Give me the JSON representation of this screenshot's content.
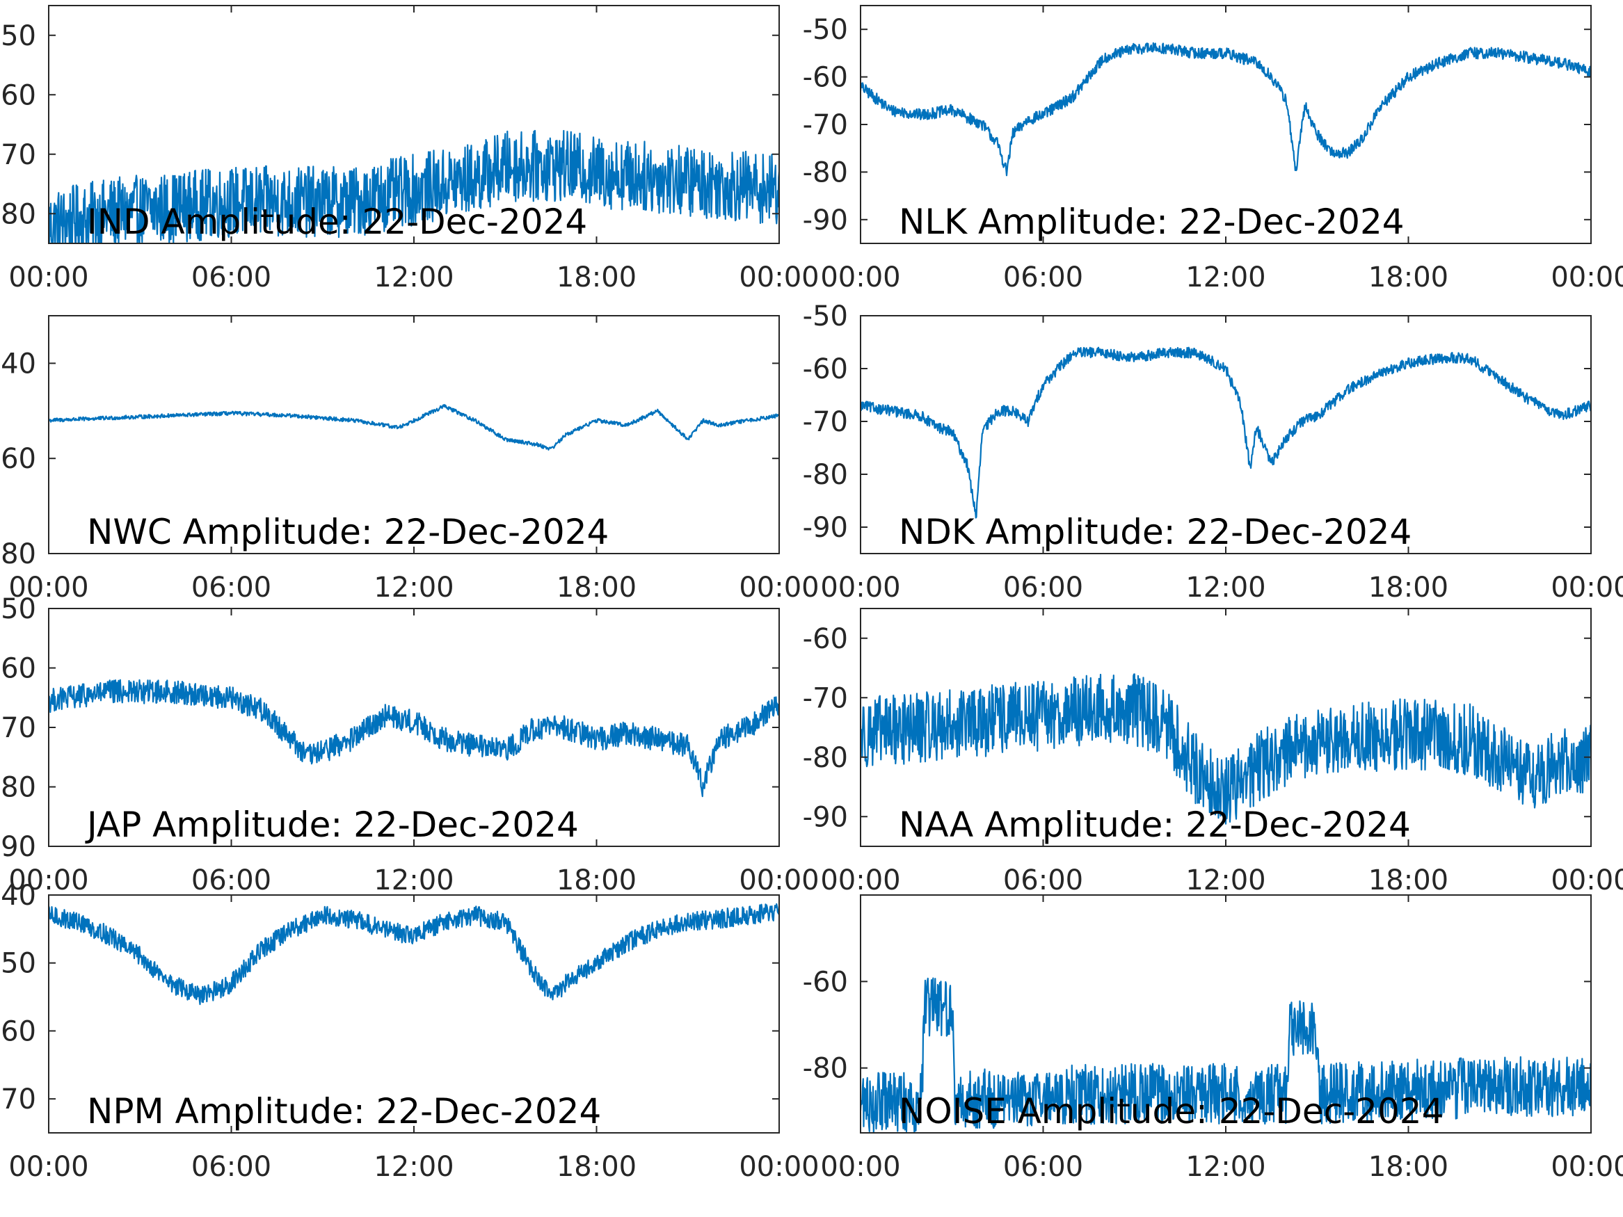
{
  "figure": {
    "line_color": "#0072BD",
    "axis_color": "#262626",
    "background": "#ffffff"
  },
  "chart_data": [
    {
      "type": "line",
      "title": "IND Amplitude: 22-Dec-2024",
      "x_ticks": [
        "00:00",
        "06:00",
        "12:00",
        "18:00",
        "00:00"
      ],
      "x_range_hours": [
        0,
        24
      ],
      "y_ticks": [
        -50,
        -60,
        -70,
        -80
      ],
      "y_tick_labels": [
        "50",
        "60",
        "70",
        "80"
      ],
      "ylim": [
        -85,
        -45
      ],
      "noise": 6,
      "series": [
        {
          "x": [
            0,
            2,
            4,
            6,
            8,
            10,
            12,
            14,
            15,
            16,
            17,
            18,
            20,
            22,
            24
          ],
          "y": [
            -82,
            -80,
            -79,
            -78,
            -78,
            -78,
            -76,
            -74,
            -72,
            -72,
            -72,
            -73,
            -74,
            -75,
            -76
          ]
        }
      ]
    },
    {
      "type": "line",
      "title": "NLK Amplitude: 22-Dec-2024",
      "x_ticks": [
        "00:00",
        "06:00",
        "12:00",
        "18:00",
        "00:00"
      ],
      "x_range_hours": [
        0,
        24
      ],
      "y_ticks": [
        -50,
        -60,
        -70,
        -80,
        -90
      ],
      "y_tick_labels": [
        "-50",
        "-60",
        "-70",
        "-80",
        "-90"
      ],
      "ylim": [
        -95,
        -45
      ],
      "noise": 1.2,
      "series": [
        {
          "x": [
            0,
            1,
            2,
            3,
            4,
            4.5,
            4.8,
            5,
            5.5,
            6,
            7,
            8,
            9,
            10,
            11,
            12,
            13,
            13.5,
            14,
            14.3,
            14.6,
            15,
            15.5,
            16,
            16.5,
            17,
            18,
            19,
            20,
            21,
            22,
            23,
            24
          ],
          "y": [
            -62,
            -67,
            -68,
            -67,
            -70,
            -74,
            -80,
            -72,
            -69,
            -68,
            -64,
            -56,
            -54,
            -54,
            -55,
            -55,
            -57,
            -60,
            -65,
            -80,
            -66,
            -72,
            -76,
            -76,
            -73,
            -67,
            -60,
            -57,
            -55,
            -55,
            -56,
            -57,
            -59
          ]
        }
      ]
    },
    {
      "type": "line",
      "title": "NWC Amplitude: 22-Dec-2024",
      "x_ticks": [
        "00:00",
        "06:00",
        "12:00",
        "18:00",
        "00:00"
      ],
      "x_range_hours": [
        0,
        24
      ],
      "y_ticks": [
        -40,
        -60,
        -80
      ],
      "y_tick_labels": [
        "40",
        "60",
        "80"
      ],
      "ylim": [
        -80,
        -30
      ],
      "noise": 0.4,
      "series": [
        {
          "x": [
            0,
            2,
            4,
            6,
            8,
            10,
            11.5,
            12,
            13,
            14,
            15,
            16,
            16.5,
            17,
            18,
            19,
            20,
            21,
            21.5,
            22,
            23,
            24
          ],
          "y": [
            -52,
            -51.5,
            -51,
            -50.5,
            -51,
            -52,
            -53.5,
            -52,
            -49,
            -52,
            -56,
            -57,
            -58,
            -55,
            -52,
            -53,
            -50,
            -56,
            -52,
            -53,
            -52,
            -51
          ]
        }
      ]
    },
    {
      "type": "line",
      "title": "NDK Amplitude: 22-Dec-2024",
      "x_ticks": [
        "00:00",
        "06:00",
        "12:00",
        "18:00",
        "00:00"
      ],
      "x_range_hours": [
        0,
        24
      ],
      "y_ticks": [
        -50,
        -60,
        -70,
        -80,
        -90
      ],
      "y_tick_labels": [
        "-50",
        "-60",
        "-70",
        "-80",
        "-90"
      ],
      "ylim": [
        -95,
        -50
      ],
      "noise": 1.0,
      "series": [
        {
          "x": [
            0,
            1,
            2,
            2.5,
            3,
            3.5,
            3.8,
            4,
            4.5,
            5,
            5.5,
            6,
            7,
            8,
            9,
            10,
            11,
            12,
            12.5,
            12.8,
            13,
            13.5,
            14,
            14.5,
            15,
            16,
            17,
            18,
            19,
            20,
            21,
            22,
            23,
            24
          ],
          "y": [
            -67,
            -68,
            -69,
            -71,
            -72,
            -78,
            -88,
            -72,
            -68,
            -68,
            -70,
            -63,
            -57,
            -57,
            -58,
            -57,
            -57,
            -60,
            -67,
            -79,
            -71,
            -78,
            -73,
            -70,
            -69,
            -64,
            -61,
            -59,
            -58,
            -58,
            -62,
            -66,
            -69,
            -67
          ]
        }
      ]
    },
    {
      "type": "line",
      "title": "JAP Amplitude: 22-Dec-2024",
      "x_ticks": [
        "00:00",
        "06:00",
        "12:00",
        "18:00",
        "00:00"
      ],
      "x_range_hours": [
        0,
        24
      ],
      "y_ticks": [
        -50,
        -60,
        -70,
        -80,
        -90
      ],
      "y_tick_labels": [
        "50",
        "60",
        "70",
        "80",
        "90"
      ],
      "ylim": [
        -90,
        -50
      ],
      "noise": 2.0,
      "series": [
        {
          "x": [
            0,
            2,
            4,
            6,
            7,
            8,
            8.5,
            9,
            10,
            11,
            12,
            13,
            14,
            15,
            16,
            17,
            18,
            19,
            20,
            21,
            21.5,
            22,
            23,
            24
          ],
          "y": [
            -65.5,
            -64,
            -64,
            -65,
            -67,
            -72,
            -75,
            -74,
            -72,
            -68,
            -69,
            -72,
            -73,
            -74,
            -70,
            -70,
            -72,
            -71,
            -72,
            -73,
            -80,
            -72,
            -70,
            -66
          ]
        }
      ]
    },
    {
      "type": "line",
      "title": "NAA Amplitude: 22-Dec-2024",
      "x_ticks": [
        "00:00",
        "06:00",
        "12:00",
        "18:00",
        "00:00"
      ],
      "x_range_hours": [
        0,
        24
      ],
      "y_ticks": [
        -60,
        -70,
        -80,
        -90
      ],
      "y_tick_labels": [
        "-60",
        "-70",
        "-80",
        "-90"
      ],
      "ylim": [
        -95,
        -55
      ],
      "noise": 6,
      "series": [
        {
          "x": [
            0,
            2,
            4,
            6,
            8,
            9,
            10,
            11,
            12,
            13,
            14,
            16,
            18,
            20,
            21,
            22,
            23,
            24
          ],
          "y": [
            -76,
            -75,
            -74,
            -73,
            -72,
            -72,
            -74,
            -82,
            -86,
            -82,
            -79,
            -77,
            -76,
            -77,
            -80,
            -84,
            -81,
            -80
          ]
        }
      ]
    },
    {
      "type": "line",
      "title": "NPM Amplitude: 22-Dec-2024",
      "x_ticks": [
        "00:00",
        "06:00",
        "12:00",
        "18:00",
        "00:00"
      ],
      "x_range_hours": [
        0,
        24
      ],
      "y_ticks": [
        -40,
        -50,
        -60,
        -70
      ],
      "y_tick_labels": [
        "40",
        "50",
        "60",
        "70"
      ],
      "ylim": [
        -75,
        -40
      ],
      "noise": 1.4,
      "series": [
        {
          "x": [
            0,
            1,
            2,
            3,
            4,
            5,
            6,
            7,
            8,
            9,
            10,
            11,
            12,
            13,
            14,
            15,
            16,
            16.5,
            17,
            18,
            19,
            20,
            21,
            22,
            23,
            24
          ],
          "y": [
            -43,
            -44,
            -46,
            -49,
            -53,
            -55,
            -53,
            -48,
            -45,
            -43,
            -43.5,
            -45,
            -46,
            -44,
            -43,
            -44,
            -52,
            -55,
            -53,
            -50,
            -47,
            -45,
            -44,
            -43.5,
            -43,
            -42.5
          ]
        }
      ]
    },
    {
      "type": "line",
      "title": "NOISE Amplitude: 22-Dec-2024",
      "x_ticks": [
        "00:00",
        "06:00",
        "12:00",
        "18:00",
        "00:00"
      ],
      "x_range_hours": [
        0,
        24
      ],
      "y_ticks": [
        -60,
        -80
      ],
      "y_tick_labels": [
        "-60",
        "-80"
      ],
      "ylim": [
        -95,
        -40
      ],
      "noise": 7,
      "series": [
        {
          "x": [
            0,
            2,
            2.1,
            3,
            3.1,
            4,
            8,
            14,
            14.1,
            15,
            15.1,
            18,
            24
          ],
          "y": [
            -88,
            -88,
            -66,
            -66,
            -88,
            -87,
            -86,
            -86,
            -71,
            -71,
            -86,
            -85,
            -84
          ]
        }
      ]
    }
  ]
}
